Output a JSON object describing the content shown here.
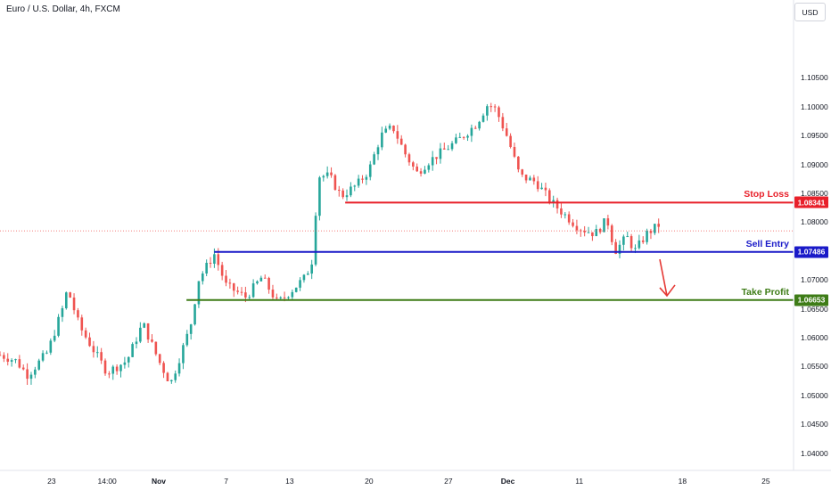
{
  "header": {
    "title": "Euro / U.S. Dollar, 4h, FXCM",
    "currency": "USD"
  },
  "colors": {
    "up": "#26a69a",
    "down": "#ef5350",
    "stop_loss": "#e8202a",
    "sell_entry": "#1a1ac8",
    "take_profit": "#3e7c17",
    "arrow": "#e53935",
    "last_price_line": "#ef5350"
  },
  "chart_data": {
    "type": "candlestick",
    "symbol": "Euro / U.S. Dollar",
    "timeframe": "4h",
    "ylim": [
      1.037,
      1.1185
    ],
    "y_ticks": [
      "1.10500",
      "1.10000",
      "1.09500",
      "1.09000",
      "1.08500",
      "1.08000",
      "1.07500",
      "1.07000",
      "1.06500",
      "1.06000",
      "1.05500",
      "1.05000",
      "1.04500",
      "1.04000"
    ],
    "x_ticks": [
      "23",
      "14:00",
      "Nov",
      "7",
      "13",
      "20",
      "27",
      "Dec",
      "11",
      "18",
      "25"
    ],
    "x_ticks_bold": [
      "Nov",
      "Dec"
    ],
    "anchors": [
      {
        "t": 0,
        "p": 1.057
      },
      {
        "t": 0.02,
        "p": 1.056
      },
      {
        "t": 0.035,
        "p": 1.0535
      },
      {
        "t": 0.06,
        "p": 1.0575
      },
      {
        "t": 0.08,
        "p": 1.0655
      },
      {
        "t": 0.085,
        "p": 1.0685
      },
      {
        "t": 0.1,
        "p": 1.062
      },
      {
        "t": 0.115,
        "p": 1.0585
      },
      {
        "t": 0.135,
        "p": 1.054
      },
      {
        "t": 0.16,
        "p": 1.056
      },
      {
        "t": 0.18,
        "p": 1.0625
      },
      {
        "t": 0.2,
        "p": 1.056
      },
      {
        "t": 0.215,
        "p": 1.052
      },
      {
        "t": 0.24,
        "p": 1.062
      },
      {
        "t": 0.25,
        "p": 1.07
      },
      {
        "t": 0.27,
        "p": 1.0745
      },
      {
        "t": 0.285,
        "p": 1.069
      },
      {
        "t": 0.31,
        "p": 1.067
      },
      {
        "t": 0.33,
        "p": 1.0705
      },
      {
        "t": 0.35,
        "p": 1.066
      },
      {
        "t": 0.37,
        "p": 1.0685
      },
      {
        "t": 0.385,
        "p": 1.0705
      },
      {
        "t": 0.395,
        "p": 1.074
      },
      {
        "t": 0.4,
        "p": 1.088
      },
      {
        "t": 0.415,
        "p": 1.088
      },
      {
        "t": 0.43,
        "p": 1.0845
      },
      {
        "t": 0.45,
        "p": 1.0865
      },
      {
        "t": 0.465,
        "p": 1.089
      },
      {
        "t": 0.48,
        "p": 1.095
      },
      {
        "t": 0.495,
        "p": 1.0965
      },
      {
        "t": 0.51,
        "p": 1.092
      },
      {
        "t": 0.525,
        "p": 1.0885
      },
      {
        "t": 0.54,
        "p": 1.0905
      },
      {
        "t": 0.56,
        "p": 1.0925
      },
      {
        "t": 0.58,
        "p": 1.0945
      },
      {
        "t": 0.6,
        "p": 1.097
      },
      {
        "t": 0.615,
        "p": 1.1005
      },
      {
        "t": 0.625,
        "p": 1.0995
      },
      {
        "t": 0.64,
        "p": 1.0945
      },
      {
        "t": 0.655,
        "p": 1.088
      },
      {
        "t": 0.675,
        "p": 1.087
      },
      {
        "t": 0.695,
        "p": 1.0835
      },
      {
        "t": 0.71,
        "p": 1.0815
      },
      {
        "t": 0.73,
        "p": 1.079
      },
      {
        "t": 0.75,
        "p": 1.078
      },
      {
        "t": 0.765,
        "p": 1.0805
      },
      {
        "t": 0.775,
        "p": 1.075
      },
      {
        "t": 0.79,
        "p": 1.0775
      },
      {
        "t": 0.8,
        "p": 1.075
      },
      {
        "t": 0.815,
        "p": 1.078
      },
      {
        "t": 0.83,
        "p": 1.0795
      }
    ],
    "last_price": 1.0785,
    "levels": [
      {
        "name": "Stop Loss",
        "value": 1.08341,
        "label": "1.08341",
        "x_start": 0.435
      },
      {
        "name": "Sell Entry",
        "value": 1.07486,
        "label": "1.07486",
        "x_start": 0.27
      },
      {
        "name": "Take Profit",
        "value": 1.06653,
        "label": "1.06653",
        "x_start": 0.235
      }
    ],
    "projection_arrow": {
      "from": 1.0745,
      "to": 1.0668
    }
  }
}
